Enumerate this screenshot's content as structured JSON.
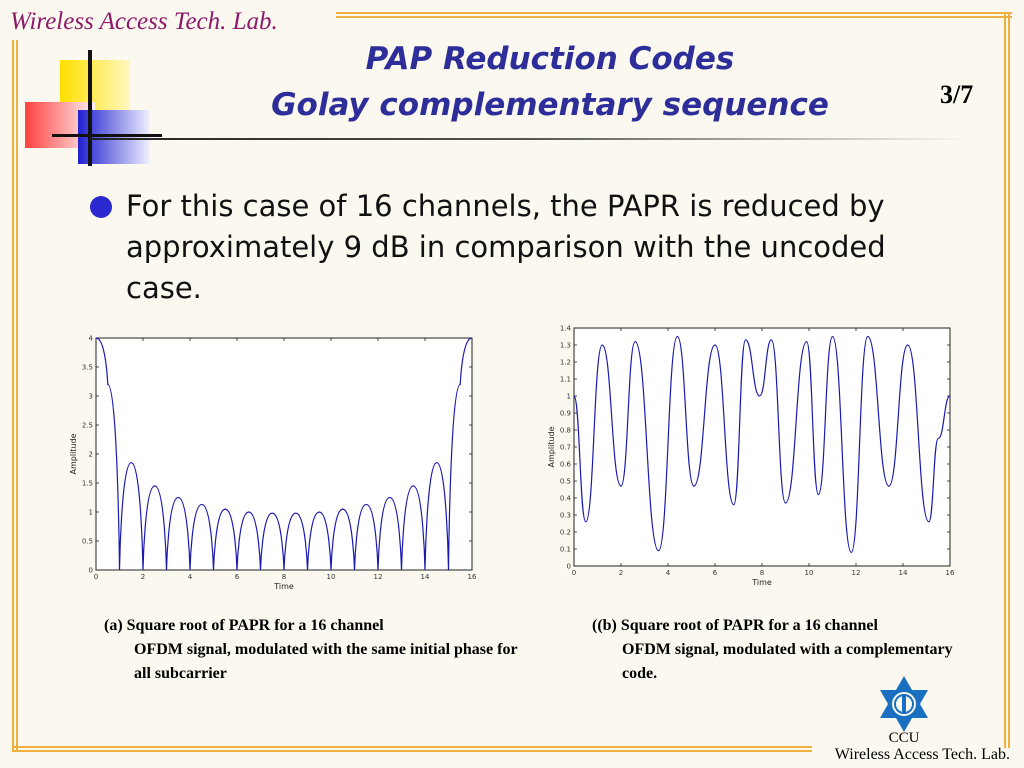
{
  "header": {
    "lab_label": "Wireless Access Tech. Lab.",
    "title_line1": "PAP Reduction Codes",
    "title_line2": "Golay complementary sequence",
    "page_number": "3/7"
  },
  "body": {
    "bullet": "For this case of 16 channels, the PAPR is reduced by approximately 9 dB in comparison with the uncoded case."
  },
  "figures": {
    "caption_a_line1": "(a) Square root of PAPR for a 16 channel",
    "caption_a_rest": "OFDM signal, modulated with the same initial phase for all subcarrier",
    "caption_b_line1": "((b) Square root of PAPR for a 16 channel",
    "caption_b_rest": "OFDM signal, modulated with a complementary code."
  },
  "footer": {
    "logo_text": "CCU",
    "lab_label": "Wireless Access Tech. Lab."
  },
  "colors": {
    "frame": "#f0b040",
    "title": "#2e2e9a",
    "lab": "#8b1a6a",
    "curve": "#1a1ab0"
  },
  "chart_data": [
    {
      "type": "line",
      "xlabel": "Time",
      "ylabel": "Amplitude",
      "xlim": [
        0,
        16
      ],
      "ylim": [
        0,
        4
      ],
      "xticks": [
        "0",
        "2",
        "4",
        "6",
        "8",
        "10",
        "12",
        "14",
        "16"
      ],
      "yticks": [
        "0",
        "0.5",
        "1",
        "1.5",
        "2",
        "2.5",
        "3",
        "3.5",
        "4"
      ],
      "series": [
        {
          "x": [
            0,
            0.5,
            1,
            1.5,
            2,
            2.5,
            3,
            3.5,
            4,
            4.5,
            5,
            5.5,
            6,
            6.5,
            7,
            7.5,
            8,
            8.5,
            9,
            9.5,
            10,
            10.5,
            11,
            11.5,
            12,
            12.5,
            13,
            13.5,
            14,
            14.5,
            15,
            15.5,
            16
          ],
          "values": [
            4,
            3.2,
            0,
            1.85,
            0,
            1.45,
            0,
            1.25,
            0,
            1.13,
            0,
            1.05,
            0,
            1.0,
            0,
            0.98,
            0,
            0.98,
            0,
            1.0,
            0,
            1.05,
            0,
            1.13,
            0,
            1.25,
            0,
            1.45,
            0,
            1.85,
            0,
            3.2,
            4
          ]
        }
      ]
    },
    {
      "type": "line",
      "xlabel": "Time",
      "ylabel": "Amplitude",
      "xlim": [
        0,
        16
      ],
      "ylim": [
        0,
        1.4
      ],
      "xticks": [
        "0",
        "2",
        "4",
        "6",
        "8",
        "10",
        "12",
        "14",
        "16"
      ],
      "yticks": [
        "0",
        "0.1",
        "0.2",
        "0.3",
        "0.4",
        "0.5",
        "0.6",
        "0.7",
        "0.8",
        "0.9",
        "1",
        "1.1",
        "1.2",
        "1.3",
        "1.4"
      ],
      "series": [
        {
          "x": [
            0,
            0.5,
            1.2,
            2,
            2.6,
            3.6,
            4.4,
            5.1,
            6,
            6.8,
            7.3,
            7.9,
            8.4,
            9,
            9.9,
            10.4,
            11,
            11.8,
            12.5,
            13.4,
            14.2,
            15.1,
            15.5,
            16
          ],
          "values": [
            1.0,
            0.26,
            1.3,
            0.47,
            1.32,
            0.09,
            1.35,
            0.47,
            1.3,
            0.36,
            1.33,
            1.0,
            1.33,
            0.37,
            1.32,
            0.42,
            1.35,
            0.08,
            1.35,
            0.47,
            1.3,
            0.26,
            0.75,
            1.0
          ]
        }
      ]
    }
  ]
}
